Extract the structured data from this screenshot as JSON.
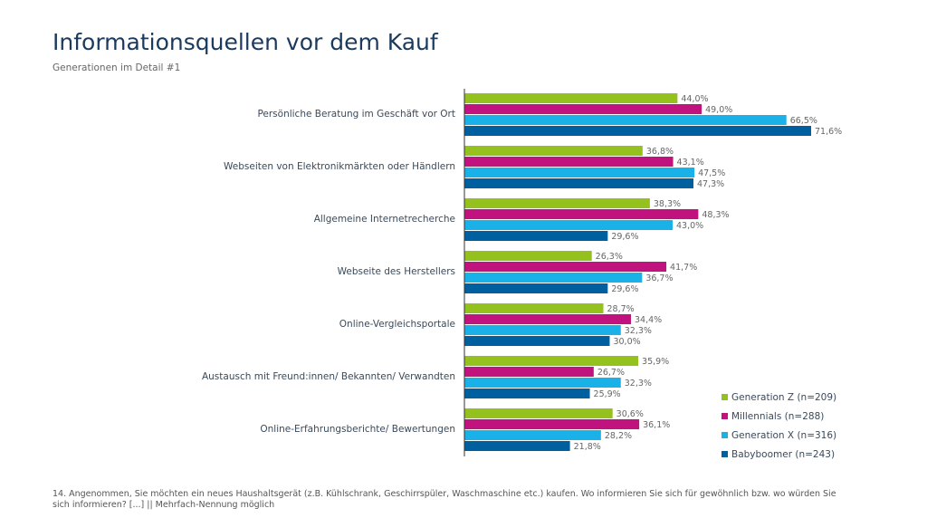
{
  "chart_data": {
    "type": "bar",
    "orientation": "horizontal",
    "title": "Informationsquellen vor dem Kauf",
    "subtitle": "Generationen im Detail #1",
    "categories": [
      "Persönliche Beratung im Geschäft vor Ort",
      "Webseiten von Elektronikmärkten oder Händlern",
      "Allgemeine Internetrecherche",
      "Webseite des Herstellers",
      "Online-Vergleichsportale",
      "Austausch mit Freund:innen/ Bekannten/ Verwandten",
      "Online-Erfahrungsberichte/ Bewertungen"
    ],
    "series": [
      {
        "name": "Generation Z (n=209)",
        "color": "#95c11f",
        "values": [
          44.0,
          36.8,
          38.3,
          26.3,
          28.7,
          35.9,
          30.6
        ],
        "value_labels": [
          "44,0%",
          "36,8%",
          "38,3%",
          "26,3%",
          "28,7%",
          "35,9%",
          "30,6%"
        ]
      },
      {
        "name": "Millennials (n=288)",
        "color": "#c0137d",
        "values": [
          49.0,
          43.1,
          48.3,
          41.7,
          34.4,
          26.7,
          36.1
        ],
        "value_labels": [
          "49,0%",
          "43,1%",
          "48,3%",
          "41,7%",
          "34,4%",
          "26,7%",
          "36,1%"
        ]
      },
      {
        "name": "Generation X (n=316)",
        "color": "#1ab0e8",
        "values": [
          66.5,
          47.5,
          43.0,
          36.7,
          32.3,
          32.3,
          28.2
        ],
        "value_labels": [
          "66,5%",
          "47,5%",
          "43,0%",
          "36,7%",
          "32,3%",
          "32,3%",
          "28,2%"
        ]
      },
      {
        "name": "Babyboomer (n=243)",
        "color": "#005f9e",
        "values": [
          71.6,
          47.3,
          29.6,
          29.6,
          30.0,
          25.9,
          21.8
        ],
        "value_labels": [
          "71,6%",
          "47,3%",
          "29,6%",
          "29,6%",
          "30,0%",
          "25,9%",
          "21,8%"
        ]
      }
    ],
    "legend": "bottom-right",
    "footnote": "14. Angenommen, Sie möchten ein neues Haushaltsgerät (z.B. Kühlschrank, Geschirrspüler, Waschmaschine etc.) kaufen. Wo informieren Sie sich für gewöhnlich bzw. wo würden Sie sich informieren? [...] || Mehrfach-Nennung möglich"
  }
}
